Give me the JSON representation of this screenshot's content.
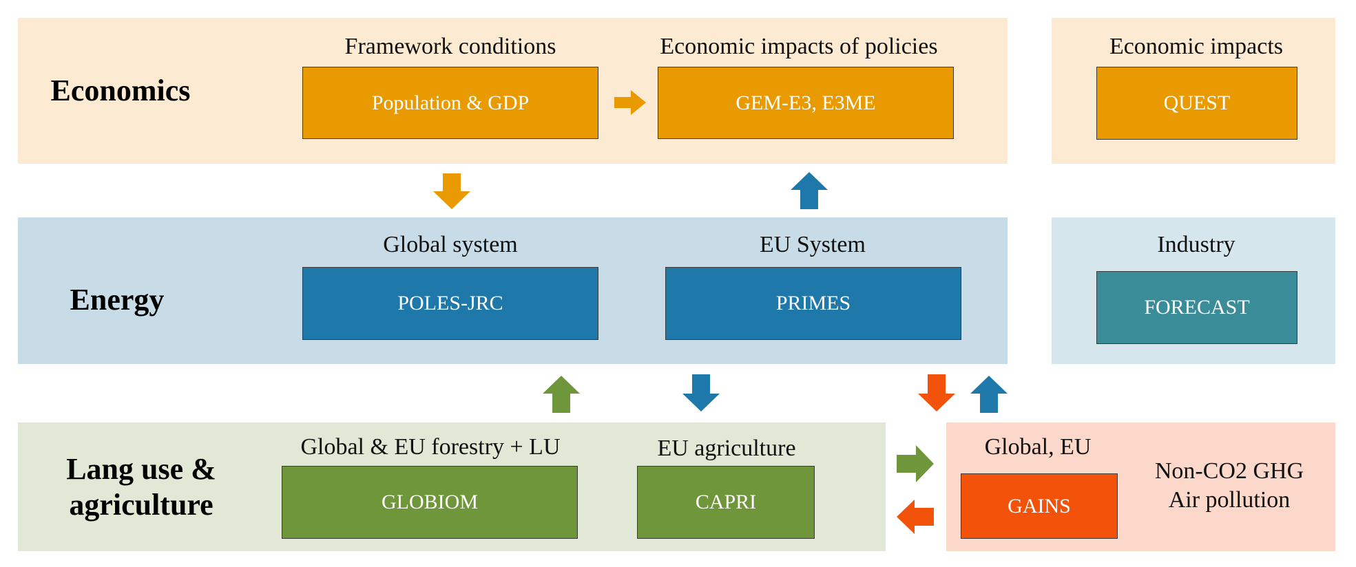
{
  "sections": {
    "economics": "Economics",
    "energy": "Energy",
    "land_line1": "Lang use &",
    "land_line2": "agriculture"
  },
  "headings": {
    "framework": "Framework conditions",
    "econ_impacts_policies": "Economic impacts of policies",
    "econ_impacts": "Economic impacts",
    "global_system": "Global system",
    "eu_system": "EU System",
    "industry": "Industry",
    "forestry": "Global & EU forestry + LU",
    "eu_agriculture": "EU agriculture",
    "global_eu": "Global, EU"
  },
  "models": {
    "population_gdp": "Population & GDP",
    "gem_e3": "GEM-E3, E3ME",
    "quest": "QUEST",
    "poles": "POLES-JRC",
    "primes": "PRIMES",
    "forecast": "FORECAST",
    "globiom": "GLOBIOM",
    "capri": "CAPRI",
    "gains": "GAINS"
  },
  "gains_side": {
    "line1": "Non-CO2 GHG",
    "line2": "Air pollution"
  },
  "colors": {
    "orange": "#e89a00",
    "blue": "#1f78aa",
    "teal": "#3a8c99",
    "green": "#6f963a",
    "red": "#f25209"
  }
}
